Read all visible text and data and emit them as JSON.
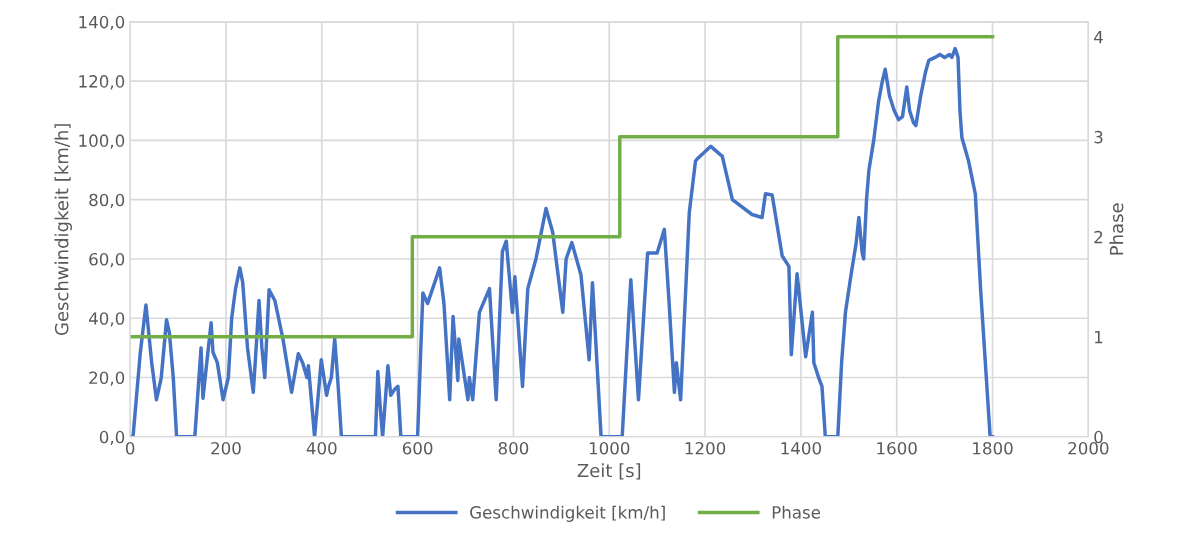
{
  "chart_data": {
    "type": "line",
    "xlabel": "Zeit [s]",
    "ylabel": "Geschwindigkeit [km/h]",
    "y2label": "Phase",
    "xlim": [
      0,
      2000
    ],
    "xticks": [
      0,
      200,
      400,
      600,
      800,
      1000,
      1200,
      1400,
      1600,
      1800,
      2000
    ],
    "ylim": [
      0,
      140
    ],
    "yticks": [
      {
        "value": 0,
        "label": "0,0"
      },
      {
        "value": 20,
        "label": "20,0"
      },
      {
        "value": 40,
        "label": "40,0"
      },
      {
        "value": 60,
        "label": "60,0"
      },
      {
        "value": 80,
        "label": "80,0"
      },
      {
        "value": 100,
        "label": "100,0"
      },
      {
        "value": 120,
        "label": "120,0"
      },
      {
        "value": 140,
        "label": "140,0"
      }
    ],
    "y2lim": [
      0,
      4.15
    ],
    "y2ticks": [
      0,
      1,
      2,
      3,
      4
    ],
    "grid": true,
    "legend": "bottom",
    "marker": "none",
    "line_style": "solid",
    "series": [
      {
        "name": "Geschwindigkeit [km/h]",
        "color": "#4472c4",
        "x": [
          0,
          6,
          21,
          33,
          45,
          55,
          65,
          76,
          82,
          90,
          97,
          135,
          148,
          152,
          160,
          169,
          173,
          182,
          194,
          205,
          212,
          220,
          229,
          235,
          245,
          257,
          263,
          269,
          275,
          281,
          290,
          302,
          319,
          337,
          351,
          360,
          369,
          372,
          385,
          399,
          410,
          414,
          420,
          427,
          433,
          441,
          512,
          517,
          522,
          527,
          538,
          544,
          552,
          559,
          565,
          600,
          611,
          621,
          646,
          655,
          667,
          674,
          684,
          686,
          705,
          708,
          715,
          729,
          750,
          764,
          777,
          785,
          798,
          803,
          819,
          830,
          847,
          868,
          882,
          903,
          910,
          922,
          941,
          958,
          965,
          983,
          1027,
          1045,
          1061,
          1080,
          1100,
          1115,
          1125,
          1136,
          1140,
          1149,
          1167,
          1180,
          1185,
          1212,
          1236,
          1257,
          1298,
          1319,
          1326,
          1340,
          1361,
          1375,
          1380,
          1392,
          1410,
          1424,
          1427,
          1437,
          1444,
          1451,
          1477,
          1485,
          1493,
          1505,
          1515,
          1521,
          1528,
          1531,
          1537,
          1542,
          1552,
          1562,
          1570,
          1576,
          1585,
          1595,
          1604,
          1612,
          1621,
          1627,
          1635,
          1640,
          1650,
          1660,
          1667,
          1680,
          1690,
          1700,
          1710,
          1715,
          1722,
          1728,
          1732,
          1736,
          1750,
          1764,
          1775,
          1785,
          1795,
          1800
        ],
        "values": [
          0,
          0,
          28,
          44.5,
          25,
          12.5,
          20,
          39.5,
          35,
          20,
          0,
          0,
          30,
          13,
          25,
          38.5,
          28.5,
          25,
          12.5,
          20,
          40,
          50,
          57,
          52,
          30,
          15,
          30,
          46,
          30,
          20,
          49.6,
          46,
          33,
          15,
          28,
          25,
          20,
          24,
          0,
          26,
          14,
          17,
          20,
          33,
          20,
          0,
          0,
          22,
          10,
          0,
          24,
          14,
          16,
          17,
          0,
          0,
          48.5,
          45,
          57,
          45,
          12.5,
          40.6,
          19,
          33,
          12.5,
          20,
          12.5,
          42,
          50,
          12.5,
          62.5,
          66,
          42,
          54,
          17,
          50,
          60,
          77,
          69,
          42,
          60,
          65.5,
          54.6,
          26,
          52,
          0,
          0,
          53,
          12.5,
          62,
          62,
          70,
          45,
          15,
          25,
          12.5,
          75.6,
          93,
          94,
          98,
          94.6,
          80,
          75,
          74,
          82,
          81.6,
          61,
          57.5,
          27.7,
          55,
          27,
          42,
          25,
          20,
          17,
          0,
          0,
          25,
          42,
          55,
          65,
          74,
          62,
          60,
          80,
          90,
          100,
          113,
          120,
          124,
          115,
          110,
          107,
          108,
          118,
          110,
          106,
          105,
          115,
          123,
          127,
          128,
          129,
          128,
          129,
          128,
          131,
          128,
          110,
          101,
          93,
          82,
          50,
          25,
          0,
          0
        ]
      },
      {
        "name": "Phase",
        "color": "#70ad47",
        "type": "step",
        "axis": "y2",
        "x": [
          0,
          589,
          1022,
          1477,
          1800
        ],
        "values": [
          1,
          2,
          3,
          4,
          4
        ]
      }
    ]
  }
}
